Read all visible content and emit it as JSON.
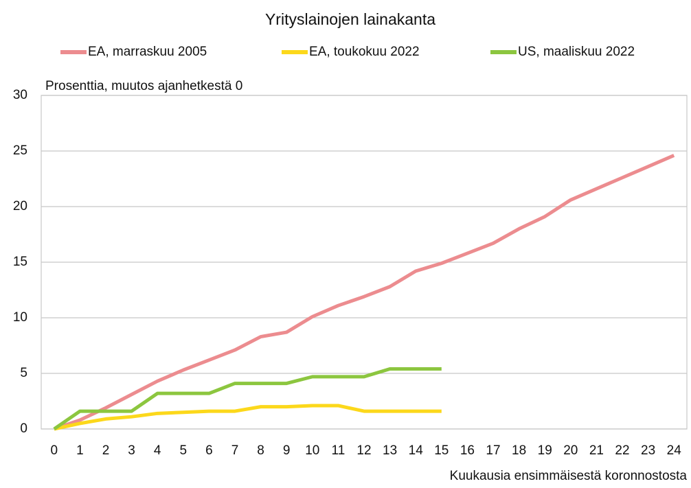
{
  "chart_data": {
    "type": "line",
    "title": "Yrityslainojen lainakanta",
    "y_label": "Prosenttia, muutos ajanhetkestä 0",
    "x_label": "Kuukausia ensimmäisestä koronnostosta",
    "x": [
      0,
      1,
      2,
      3,
      4,
      5,
      6,
      7,
      8,
      9,
      10,
      11,
      12,
      13,
      14,
      15,
      16,
      17,
      18,
      19,
      20,
      21,
      22,
      23,
      24
    ],
    "xlim": [
      -0.5,
      24.5
    ],
    "xticks": [
      0,
      1,
      2,
      3,
      4,
      5,
      6,
      7,
      8,
      9,
      10,
      11,
      12,
      13,
      14,
      15,
      16,
      17,
      18,
      19,
      20,
      21,
      22,
      23,
      24
    ],
    "ylim": [
      0,
      30
    ],
    "yticks": [
      0,
      5,
      10,
      15,
      20,
      25,
      30
    ],
    "grid": true,
    "legend": "top",
    "series": [
      {
        "name": "EA, marraskuu 2005",
        "color": "#ec8c8f",
        "values": [
          0,
          0.8,
          1.9,
          3.1,
          4.3,
          5.3,
          6.2,
          7.1,
          8.3,
          8.7,
          10.1,
          11.1,
          11.9,
          12.8,
          14.2,
          14.9,
          15.8,
          16.7,
          18.0,
          19.1,
          20.6,
          21.6,
          22.6,
          23.6,
          24.6
        ]
      },
      {
        "name": "EA, toukokuu 2022",
        "color": "#fcd81b",
        "values": [
          0,
          0.5,
          0.9,
          1.1,
          1.4,
          1.5,
          1.6,
          1.6,
          2.0,
          2.0,
          2.1,
          2.1,
          1.6,
          1.6,
          1.6,
          1.6,
          null,
          null,
          null,
          null,
          null,
          null,
          null,
          null,
          null
        ]
      },
      {
        "name": "US, maaliskuu 2022",
        "color": "#8cc63f",
        "values": [
          0,
          1.6,
          1.6,
          1.6,
          3.2,
          3.2,
          3.2,
          4.1,
          4.1,
          4.1,
          4.7,
          4.7,
          4.7,
          5.4,
          5.4,
          5.4,
          null,
          null,
          null,
          null,
          null,
          null,
          null,
          null,
          null
        ]
      }
    ]
  }
}
